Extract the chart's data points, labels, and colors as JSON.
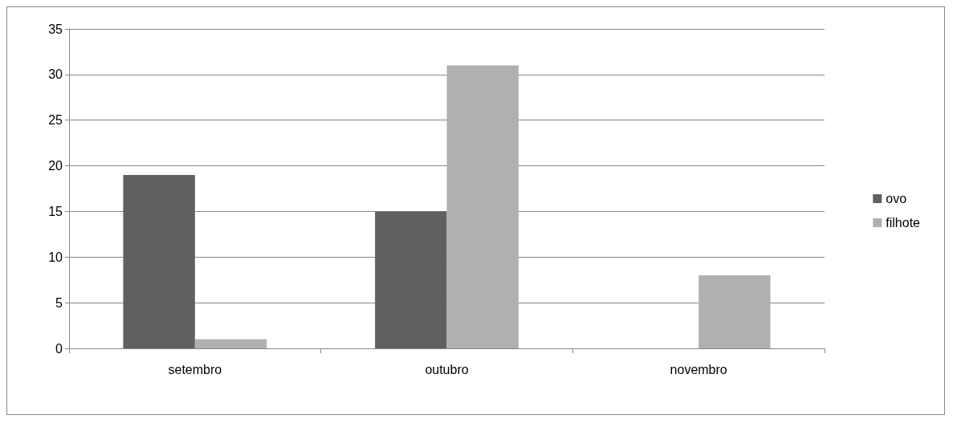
{
  "chart_data": {
    "type": "bar",
    "categories": [
      "setembro",
      "outubro",
      "novembro"
    ],
    "series": [
      {
        "name": "ovo",
        "color": "#606060",
        "values": [
          19,
          15,
          0
        ]
      },
      {
        "name": "filhote",
        "color": "#b0b0b0",
        "values": [
          1,
          31,
          8
        ]
      }
    ],
    "ylim": [
      0,
      35
    ],
    "yticks": [
      0,
      5,
      10,
      15,
      20,
      25,
      30,
      35
    ],
    "grid": "y",
    "legend": "right"
  }
}
